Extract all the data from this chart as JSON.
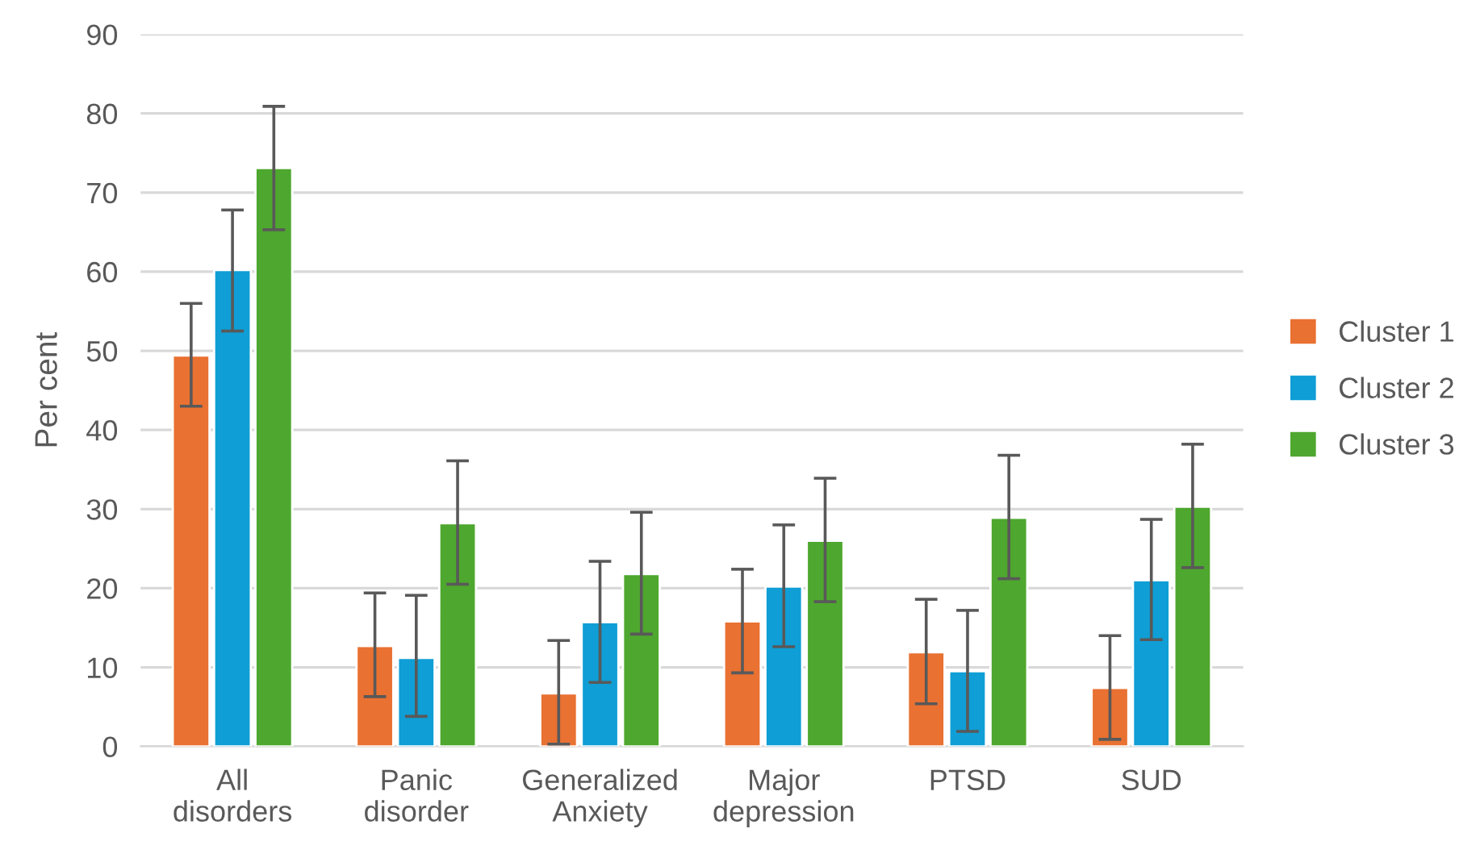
{
  "chart_data": {
    "type": "bar",
    "ylabel": "Per cent",
    "categories": [
      "All\ndisorders",
      "Panic\ndisorder",
      "Generalized\nAnxiety",
      "Major\ndepression",
      "PTSD",
      "SUD"
    ],
    "series": [
      {
        "name": "Cluster 1",
        "color": "#e97132",
        "values": [
          49.4,
          12.7,
          6.7,
          15.8,
          11.9,
          7.4
        ],
        "errors": [
          [
            43.0,
            56.0
          ],
          [
            6.3,
            19.4
          ],
          [
            0.3,
            13.4
          ],
          [
            9.3,
            22.4
          ],
          [
            5.4,
            18.6
          ],
          [
            0.9,
            14.0
          ]
        ]
      },
      {
        "name": "Cluster 2",
        "color": "#0f9ed5",
        "values": [
          60.2,
          11.2,
          15.7,
          20.2,
          9.5,
          21.0
        ],
        "errors": [
          [
            52.5,
            67.8
          ],
          [
            3.8,
            19.1
          ],
          [
            8.1,
            23.4
          ],
          [
            12.6,
            28.0
          ],
          [
            1.9,
            17.2
          ],
          [
            13.5,
            28.7
          ]
        ]
      },
      {
        "name": "Cluster 3",
        "color": "#4ea72e",
        "values": [
          73.1,
          28.2,
          21.8,
          26.0,
          28.9,
          30.3
        ],
        "errors": [
          [
            65.3,
            80.9
          ],
          [
            20.5,
            36.1
          ],
          [
            14.2,
            29.6
          ],
          [
            18.3,
            33.9
          ],
          [
            21.2,
            36.8
          ],
          [
            22.6,
            38.2
          ]
        ]
      }
    ],
    "ylim": [
      0,
      90
    ],
    "yticks": [
      0,
      10,
      20,
      30,
      40,
      50,
      60,
      70,
      80,
      90
    ],
    "grid": "y",
    "legend": "right"
  }
}
